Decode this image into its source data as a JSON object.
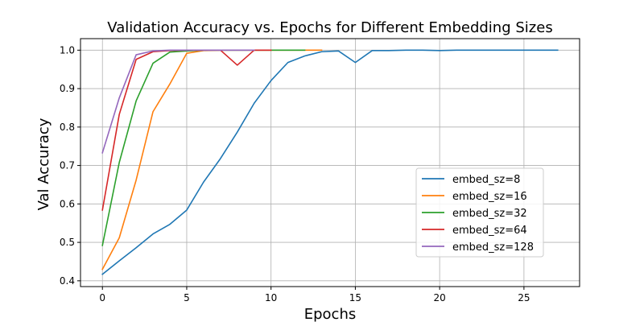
{
  "chart_data": {
    "type": "line",
    "title": "Validation Accuracy vs. Epochs for Different Embedding Sizes",
    "xlabel": "Epochs",
    "ylabel": "Val Accuracy",
    "xlim": [
      -1.3,
      28.3
    ],
    "ylim": [
      0.385,
      1.03
    ],
    "xticks": [
      0,
      5,
      10,
      15,
      20,
      25
    ],
    "yticks": [
      0.4,
      0.5,
      0.6,
      0.7,
      0.8,
      0.9,
      1.0
    ],
    "grid": true,
    "legend_position": "center-right",
    "series": [
      {
        "name": "embed_sz=8",
        "color": "#1f77b4",
        "x": [
          0,
          1,
          2,
          3,
          4,
          5,
          6,
          7,
          8,
          9,
          10,
          11,
          12,
          13,
          14,
          15,
          16,
          17,
          18,
          19,
          20,
          21,
          22,
          23,
          24,
          25,
          26,
          27
        ],
        "y": [
          0.417,
          0.452,
          0.486,
          0.522,
          0.547,
          0.584,
          0.657,
          0.718,
          0.787,
          0.862,
          0.921,
          0.968,
          0.985,
          0.996,
          0.998,
          0.968,
          0.999,
          0.999,
          1.0,
          1.0,
          0.999,
          1.0,
          1.0,
          1.0,
          1.0,
          1.0,
          1.0,
          1.0
        ]
      },
      {
        "name": "embed_sz=16",
        "color": "#ff7f0e",
        "x": [
          0,
          1,
          2,
          3,
          4,
          5,
          6,
          7,
          8,
          9,
          10,
          11,
          12,
          13
        ],
        "y": [
          0.43,
          0.512,
          0.662,
          0.84,
          0.912,
          0.992,
          0.999,
          1.0,
          1.0,
          1.0,
          1.0,
          1.0,
          1.0,
          1.0
        ]
      },
      {
        "name": "embed_sz=32",
        "color": "#2ca02c",
        "x": [
          0,
          1,
          2,
          3,
          4,
          5,
          6,
          7,
          8,
          9,
          10,
          11,
          12
        ],
        "y": [
          0.492,
          0.708,
          0.868,
          0.966,
          0.995,
          0.998,
          1.0,
          1.0,
          1.0,
          1.0,
          1.0,
          1.0,
          1.0
        ]
      },
      {
        "name": "embed_sz=64",
        "color": "#d62728",
        "x": [
          0,
          1,
          2,
          3,
          4,
          5,
          6,
          7,
          8,
          9,
          10
        ],
        "y": [
          0.584,
          0.833,
          0.976,
          0.996,
          0.999,
          1.0,
          1.0,
          1.0,
          0.961,
          1.0,
          1.0
        ]
      },
      {
        "name": "embed_sz=128",
        "color": "#9467bd",
        "x": [
          0,
          1,
          2,
          3,
          4,
          5,
          6,
          7,
          8,
          9
        ],
        "y": [
          0.733,
          0.876,
          0.988,
          0.998,
          1.0,
          1.0,
          1.0,
          1.0,
          1.0,
          1.0
        ]
      }
    ]
  }
}
